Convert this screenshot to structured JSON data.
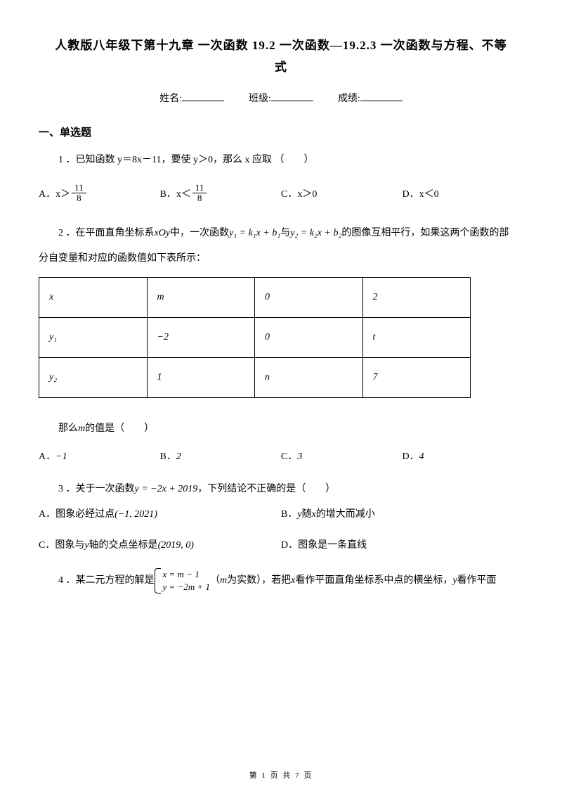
{
  "title_line1": "人教版八年级下第十九章 一次函数 19.2 一次函数—19.2.3 一次函数与方程、不等",
  "title_line2": "式",
  "info": {
    "name_label": "姓名:",
    "class_label": "班级:",
    "score_label": "成绩:"
  },
  "section1": "一、单选题",
  "q1": {
    "num": "1 ．",
    "text": "已知函数 y＝8x－11，要使 y＞0，那么 x 应取 （　　）",
    "A_prefix": "A．x＞",
    "B_prefix": "B．x＜",
    "frac_num": "11",
    "frac_den": "8",
    "C": "C．x＞0",
    "D": "D．x＜0"
  },
  "q2": {
    "num": "2 ．",
    "text_a": "在平面直角坐标系",
    "xoy": "xOy",
    "text_b": "中，一次函数",
    "y1": "y₁ = k₁x + b₁",
    "text_c": "与",
    "y2": "y₂ = k₂x + b₂",
    "text_d": "的图像互相平行，如果这两个函数的部",
    "text_e": "分自变量和对应的函数值如下表所示：",
    "table": {
      "r1": [
        "x",
        "m",
        "0",
        "2"
      ],
      "r2": [
        "y₁",
        "−2",
        "0",
        "t"
      ],
      "r3": [
        "y₂",
        "1",
        "n",
        "7"
      ]
    },
    "follow_a": "那么",
    "m": "m",
    "follow_b": "的值是（　　）",
    "A": "A．",
    "Av": "−1",
    "B": "B．",
    "Bv": "2",
    "C": "C．",
    "Cv": "3",
    "D": "D．",
    "Dv": "4"
  },
  "q3": {
    "num": "3 ．",
    "text_a": "关于一次函数",
    "fn": "y = −2x + 2019",
    "text_b": "，下列结论不正确的是（　　）",
    "A_a": "A．图象必经过点",
    "A_pt": "(−1, 2021)",
    "B_a": "B．",
    "B_y": "y",
    "B_b": "随",
    "B_x": "x",
    "B_c": "的增大而减小",
    "C_a": "C．图象与",
    "C_y": "y",
    "C_b": "轴的交点坐标是",
    "C_pt": "(2019, 0)",
    "D": "D．图象是一条直线"
  },
  "q4": {
    "num": "4 ．",
    "text_a": "某二元方程的解是",
    "case1": "x = m − 1",
    "case2": "y = −2m + 1",
    "text_b": "（",
    "m": "m",
    "text_c": "为实数），若把",
    "x": "x",
    "text_d": "看作平面直角坐标系中点的横坐标，",
    "y": "y",
    "text_e": "看作平面"
  },
  "footer": "第 1 页 共 7 页"
}
